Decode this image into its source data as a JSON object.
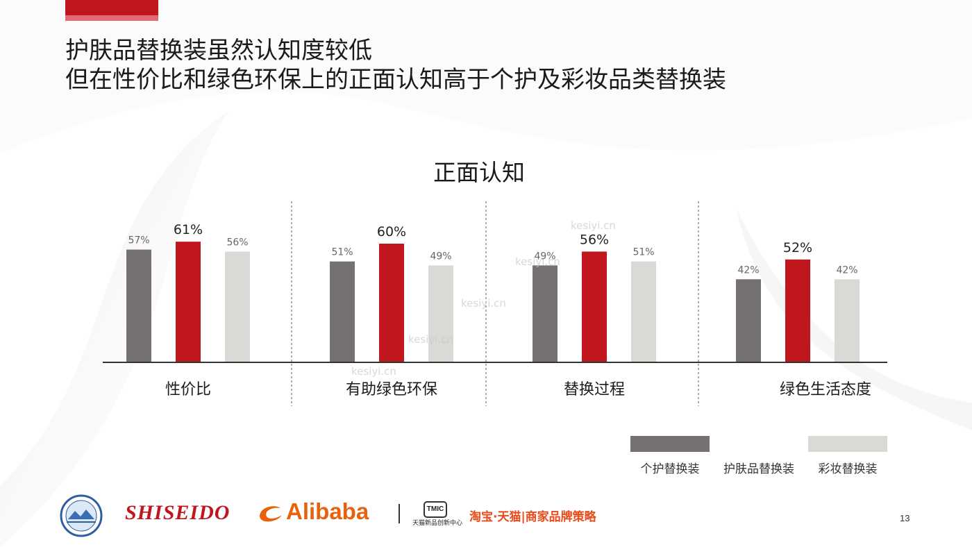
{
  "slide": {
    "title_lines": [
      "护肤品替换装虽然认知度较低",
      "但在性价比和绿色环保上的正面认知高于个护及彩妆品类替换装"
    ],
    "page_number": "13",
    "accent_color": "#c0171f"
  },
  "chart_data": {
    "type": "bar",
    "title": "正面认知",
    "categories": [
      "性价比",
      "有助绿色环保",
      "替换过程",
      "绿色生活态度"
    ],
    "series": [
      {
        "name": "个护替换装",
        "values": [
          57,
          51,
          49,
          42
        ],
        "value_labels": [
          "57%",
          "51%",
          "49%",
          "42%"
        ],
        "color": "#767171"
      },
      {
        "name": "护肤品替换装",
        "values": [
          61,
          60,
          56,
          52
        ],
        "value_labels": [
          "61%",
          "60%",
          "56%",
          "52%"
        ],
        "color": "#c0171f"
      },
      {
        "name": "彩妆替换装",
        "values": [
          56,
          49,
          51,
          42
        ],
        "value_labels": [
          "56%",
          "49%",
          "51%",
          "42%"
        ],
        "color": "#d9d9d6"
      }
    ],
    "ylim": [
      0,
      100
    ],
    "grid": false,
    "legend_position": "bottom-right",
    "group_separators": "dashed"
  },
  "footer": {
    "logos": {
      "shiseido": "SHISEIDO",
      "alibaba": "Alibaba",
      "tmic_badge": "TMIC",
      "tmic_caption": "天猫新品创新中心",
      "taobao_tmall": "淘宝·天猫|商家品牌策略",
      "ceec_badge": "CEEC"
    }
  },
  "watermark": {
    "text": "kesiyi.cn"
  }
}
